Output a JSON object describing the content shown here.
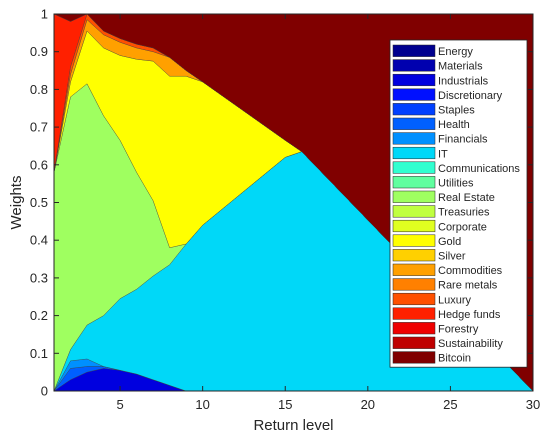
{
  "chart_data": {
    "type": "area",
    "stacked": true,
    "xlabel": "Return level",
    "ylabel": "Weights",
    "xlim": [
      1,
      30
    ],
    "ylim": [
      0,
      1
    ],
    "xticks": [
      5,
      10,
      15,
      20,
      25,
      30
    ],
    "yticks": [
      0,
      0.1,
      0.2,
      0.3,
      0.4,
      0.5,
      0.6,
      0.7,
      0.8,
      0.9,
      1
    ],
    "grid": false,
    "legend_position": "top-right",
    "x": [
      1,
      2,
      3,
      4,
      5,
      6,
      7,
      8,
      9,
      10,
      15,
      16,
      30
    ],
    "series": [
      {
        "name": "Energy",
        "color": "#00008f",
        "values": [
          0,
          0,
          0,
          0,
          0,
          0,
          0,
          0,
          0,
          0,
          0,
          0,
          0
        ]
      },
      {
        "name": "Materials",
        "color": "#0000af",
        "values": [
          0,
          0,
          0,
          0,
          0,
          0,
          0,
          0,
          0,
          0,
          0,
          0,
          0
        ]
      },
      {
        "name": "Industrials",
        "color": "#0000df",
        "values": [
          0,
          0.03,
          0.05,
          0.06,
          0.055,
          0.045,
          0.03,
          0.015,
          0,
          0,
          0,
          0,
          0
        ]
      },
      {
        "name": "Discretionary",
        "color": "#0010ff",
        "values": [
          0,
          0,
          0,
          0,
          0,
          0,
          0,
          0,
          0,
          0,
          0,
          0,
          0
        ]
      },
      {
        "name": "Staples",
        "color": "#0040ff",
        "values": [
          0,
          0,
          0,
          0,
          0,
          0,
          0,
          0,
          0,
          0,
          0,
          0,
          0
        ]
      },
      {
        "name": "Health",
        "color": "#0060ff",
        "values": [
          0,
          0.03,
          0.015,
          0.005,
          0,
          0,
          0,
          0,
          0,
          0,
          0,
          0,
          0
        ]
      },
      {
        "name": "Financials",
        "color": "#0090ff",
        "values": [
          0,
          0.02,
          0.02,
          0,
          0,
          0,
          0,
          0,
          0,
          0,
          0,
          0,
          0
        ]
      },
      {
        "name": "IT",
        "color": "#00d8f8",
        "values": [
          0,
          0.03,
          0.09,
          0.135,
          0.19,
          0.225,
          0.275,
          0.32,
          0.39,
          0.44,
          0.62,
          0.635,
          0
        ]
      },
      {
        "name": "Communications",
        "color": "#30ffd0",
        "values": [
          0,
          0,
          0,
          0,
          0,
          0,
          0,
          0,
          0,
          0,
          0,
          0,
          0
        ]
      },
      {
        "name": "Utilities",
        "color": "#60ff9f",
        "values": [
          0,
          0,
          0,
          0,
          0,
          0,
          0,
          0,
          0,
          0,
          0,
          0,
          0
        ]
      },
      {
        "name": "Real Estate",
        "color": "#9fff60",
        "values": [
          0.58,
          0.67,
          0.64,
          0.53,
          0.42,
          0.31,
          0.2,
          0.045,
          0,
          0,
          0,
          0,
          0
        ]
      },
      {
        "name": "Treasuries",
        "color": "#c0ff40",
        "values": [
          0,
          0,
          0,
          0,
          0,
          0,
          0,
          0,
          0,
          0,
          0,
          0,
          0
        ]
      },
      {
        "name": "Corporate",
        "color": "#e0ff20",
        "values": [
          0,
          0,
          0,
          0,
          0,
          0,
          0,
          0,
          0,
          0,
          0,
          0,
          0
        ]
      },
      {
        "name": "Gold",
        "color": "#ffff00",
        "values": [
          0,
          0.04,
          0.14,
          0.18,
          0.225,
          0.3,
          0.37,
          0.455,
          0.445,
          0.38,
          0.045,
          0,
          0
        ]
      },
      {
        "name": "Silver",
        "color": "#ffd000",
        "values": [
          0,
          0,
          0,
          0,
          0,
          0,
          0,
          0,
          0,
          0,
          0,
          0,
          0
        ]
      },
      {
        "name": "Commodities",
        "color": "#ffa000",
        "values": [
          0,
          0.02,
          0.03,
          0.035,
          0.035,
          0.03,
          0.025,
          0.05,
          0.015,
          0,
          0,
          0,
          0
        ]
      },
      {
        "name": "Rare metals",
        "color": "#ff8000",
        "values": [
          0,
          0,
          0,
          0,
          0,
          0,
          0,
          0,
          0,
          0,
          0,
          0,
          0
        ]
      },
      {
        "name": "Luxury",
        "color": "#ff5000",
        "values": [
          0,
          0.02,
          0.02,
          0.01,
          0.01,
          0.01,
          0.01,
          0,
          0,
          0,
          0,
          0,
          0
        ]
      },
      {
        "name": "Hedge funds",
        "color": "#ff2000",
        "values": [
          0.42,
          0.12,
          0,
          0,
          0,
          0,
          0,
          0,
          0,
          0,
          0,
          0,
          0
        ]
      },
      {
        "name": "Forestry",
        "color": "#ef0000",
        "values": [
          0,
          0,
          0,
          0,
          0,
          0,
          0,
          0,
          0,
          0,
          0,
          0,
          0
        ]
      },
      {
        "name": "Sustainability",
        "color": "#bf0000",
        "values": [
          0,
          0,
          0,
          0,
          0,
          0,
          0,
          0,
          0,
          0,
          0,
          0,
          0
        ]
      },
      {
        "name": "Bitcoin",
        "color": "#800000",
        "values": [
          0,
          0.03,
          0.035,
          0.07,
          0.065,
          0.08,
          0.09,
          0.115,
          0.15,
          0.18,
          0.335,
          0.365,
          1
        ]
      }
    ]
  }
}
